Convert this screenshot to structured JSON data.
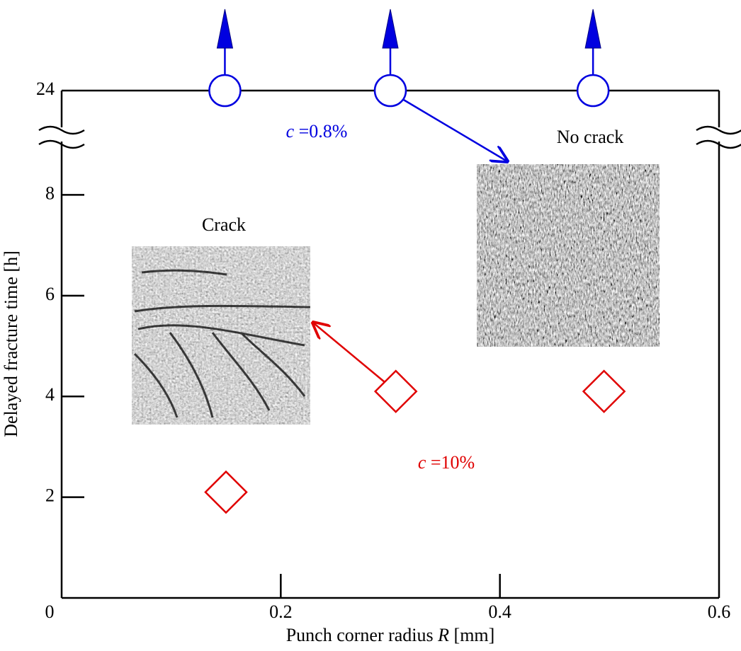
{
  "chart_data": {
    "type": "scatter",
    "xlabel": [
      "Punch corner radius ",
      "R",
      " [mm]"
    ],
    "ylabel": "Delayed fracture time [h]",
    "xlim": [
      0,
      0.6
    ],
    "xticks": [
      0,
      0.2,
      0.4,
      0.6
    ],
    "ylim": [
      0,
      24
    ],
    "yticks": [
      2,
      4,
      6,
      8,
      24
    ],
    "y_break": [
      9.2,
      23
    ],
    "series": [
      {
        "color": "#e00000",
        "marker": "diamond",
        "x": [
          0.15,
          0.305,
          0.495
        ],
        "values": [
          2.1,
          4.1,
          4.1
        ]
      },
      {
        "color": "#0000e0",
        "marker": "circle",
        "x": [
          0.149,
          0.3,
          0.485
        ],
        "values": [
          24,
          24,
          24
        ]
      }
    ],
    "annotations": [
      {
        "parts": [
          "c",
          " =0.8%"
        ],
        "color": "#0000e0"
      },
      {
        "parts": [
          "c",
          " =10%"
        ],
        "color": "#e00000"
      },
      {
        "text": "Crack"
      },
      {
        "text": "No crack"
      }
    ]
  }
}
